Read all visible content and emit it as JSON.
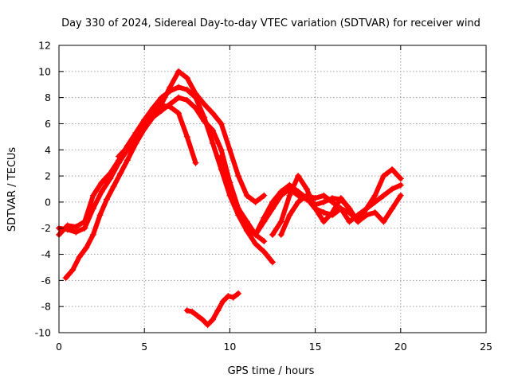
{
  "chart_data": {
    "type": "scatter",
    "title": "Day 330 of 2024, Sidereal Day-to-day VTEC variation (SDTVAR) for receiver wind",
    "xlabel": "GPS time / hours",
    "ylabel": "SDTVAR / TECUs",
    "xlim": [
      0,
      25
    ],
    "ylim": [
      -10,
      12
    ],
    "xticks": [
      "0",
      "5",
      "10",
      "15",
      "20",
      "25"
    ],
    "yticks": [
      "-10",
      "-8",
      "-6",
      "-4",
      "-2",
      "0",
      "2",
      "4",
      "6",
      "8",
      "10",
      "12"
    ],
    "grid": true,
    "marker": "+",
    "color": "#ff0000",
    "series": [
      {
        "name": "track-1",
        "x": [
          0.0,
          0.5,
          1.0,
          1.5,
          2.0,
          2.5,
          3.0,
          3.5,
          4.0,
          4.5,
          5.0,
          5.5,
          6.0,
          6.5,
          7.0,
          7.5,
          8.0,
          8.5,
          9.0,
          9.5,
          10.0,
          10.5,
          11.0,
          11.5,
          12.0,
          12.5
        ],
        "y": [
          -2.5,
          -1.8,
          -1.9,
          -1.5,
          0.5,
          1.5,
          2.2,
          3.2,
          4.3,
          5.3,
          6.3,
          7.2,
          8.0,
          8.5,
          8.8,
          8.6,
          8.0,
          6.5,
          4.5,
          2.5,
          0.5,
          -1.0,
          -2.2,
          -3.2,
          -3.8,
          -4.6
        ]
      },
      {
        "name": "track-2",
        "x": [
          0.0,
          0.5,
          1.0,
          1.5,
          2.0,
          2.5,
          3.0,
          3.5,
          4.0,
          4.5,
          5.0,
          5.5,
          6.0,
          6.5,
          7.0,
          7.5,
          8.0,
          8.5,
          9.0,
          9.5,
          10.0,
          10.5,
          11.0,
          11.5,
          12.0
        ],
        "y": [
          -2.0,
          -2.1,
          -2.3,
          -2.0,
          -0.5,
          0.8,
          1.8,
          3.0,
          4.0,
          5.0,
          5.8,
          6.5,
          7.0,
          7.5,
          8.0,
          7.8,
          7.2,
          6.2,
          5.5,
          4.0,
          1.5,
          -0.5,
          -1.5,
          -2.5,
          -3.0
        ]
      },
      {
        "name": "track-3",
        "x": [
          0.4,
          0.8,
          1.2,
          1.6,
          2.0,
          2.4,
          2.8,
          3.2,
          3.6,
          4.0,
          4.5,
          5.0,
          5.5,
          6.0,
          6.5,
          7.0,
          7.5,
          8.0,
          8.5,
          9.0,
          9.5,
          10.0,
          10.5,
          11.0,
          11.5,
          12.0
        ],
        "y": [
          -5.8,
          -5.2,
          -4.2,
          -3.5,
          -2.5,
          -1.0,
          0.2,
          1.2,
          2.2,
          3.2,
          4.5,
          5.6,
          6.5,
          7.5,
          8.8,
          10.0,
          9.5,
          8.3,
          7.5,
          6.8,
          6.0,
          4.0,
          2.0,
          0.5,
          0.0,
          0.5
        ]
      },
      {
        "name": "track-4",
        "x": [
          3.5,
          4.0,
          4.5,
          5.0,
          5.5,
          6.0,
          6.5,
          7.0,
          7.5,
          8.0
        ],
        "y": [
          3.5,
          4.2,
          5.2,
          6.2,
          7.0,
          7.4,
          7.3,
          6.8,
          5.0,
          3.0
        ]
      },
      {
        "name": "track-5",
        "x": [
          9.5,
          10.0,
          10.5,
          11.0,
          11.5,
          12.0,
          12.5,
          13.0,
          13.5,
          14.0,
          14.5,
          15.0,
          15.5,
          16.0,
          16.5,
          17.0
        ],
        "y": [
          3.5,
          1.5,
          -0.5,
          -1.8,
          -2.5,
          -1.5,
          -0.5,
          0.5,
          1.0,
          0.5,
          0.2,
          -0.2,
          0.0,
          0.3,
          0.2,
          -0.5
        ]
      },
      {
        "name": "track-6",
        "x": [
          11.5,
          12.0,
          12.5,
          13.0,
          13.5,
          14.0,
          14.5,
          15.0,
          15.5,
          16.0,
          16.5,
          17.0,
          17.5,
          18.0,
          18.5,
          19.0,
          19.5,
          20.0
        ],
        "y": [
          -2.5,
          -1.2,
          0.0,
          0.8,
          1.3,
          0.8,
          0.3,
          -0.5,
          -0.8,
          -1.0,
          -0.5,
          -0.8,
          -1.5,
          -1.0,
          -0.8,
          -1.5,
          -0.5,
          0.5
        ]
      },
      {
        "name": "track-7",
        "x": [
          12.5,
          13.0,
          13.5,
          14.0,
          14.5,
          15.0,
          15.5,
          16.0,
          16.5,
          17.0,
          17.5,
          18.0,
          18.5,
          19.0,
          19.5,
          20.0
        ],
        "y": [
          -2.5,
          -1.5,
          0.5,
          2.0,
          1.0,
          -0.5,
          -1.5,
          -0.8,
          0.3,
          -0.5,
          -1.5,
          -0.5,
          0.5,
          2.0,
          2.5,
          1.8
        ]
      },
      {
        "name": "track-8",
        "x": [
          13.0,
          13.5,
          14.0,
          14.5,
          15.0,
          15.5,
          16.0,
          16.5,
          17.0,
          17.5,
          18.0,
          18.5,
          19.0,
          19.5,
          20.0
        ],
        "y": [
          -2.5,
          -1.0,
          0.0,
          0.5,
          0.3,
          0.5,
          0.0,
          -0.5,
          -1.5,
          -1.0,
          -0.5,
          0.0,
          0.5,
          1.0,
          1.3
        ]
      },
      {
        "name": "track-9",
        "x": [
          7.5,
          7.8,
          8.1,
          8.4,
          8.7,
          9.0,
          9.3,
          9.6,
          9.9,
          10.2,
          10.5
        ],
        "y": [
          -8.3,
          -8.4,
          -8.7,
          -9.0,
          -9.4,
          -9.0,
          -8.3,
          -7.6,
          -7.2,
          -7.3,
          -7.0
        ]
      }
    ]
  }
}
